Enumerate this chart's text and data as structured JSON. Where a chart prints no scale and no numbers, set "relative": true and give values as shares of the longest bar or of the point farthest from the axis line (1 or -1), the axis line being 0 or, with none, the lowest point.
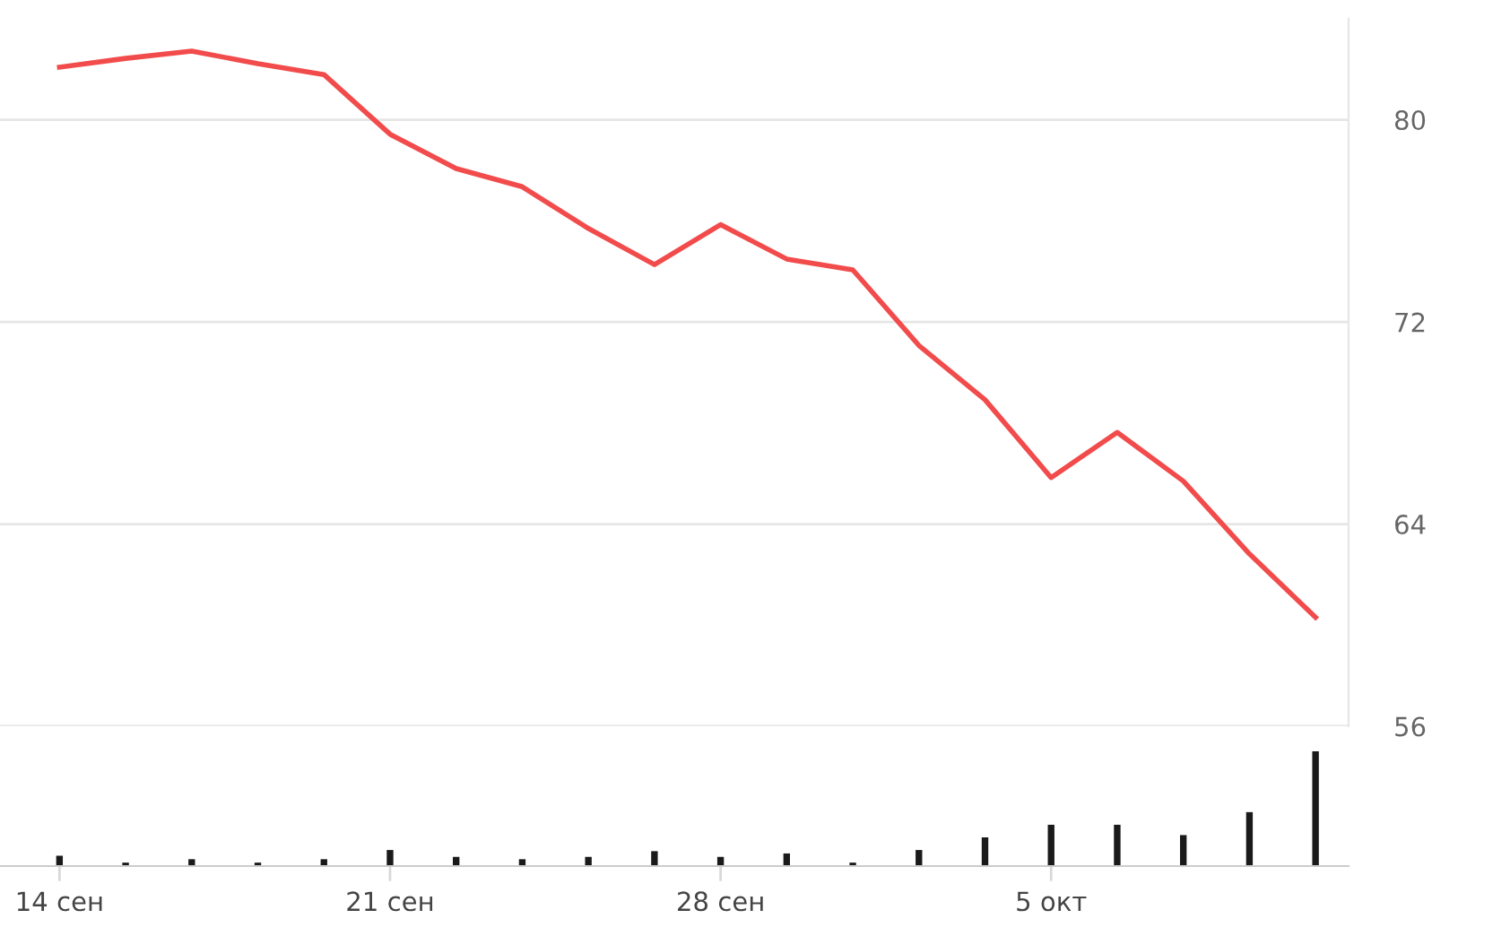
{
  "chart_data": [
    {
      "type": "line",
      "categories": [
        null,
        null,
        null,
        null,
        null,
        null,
        null,
        null,
        null,
        null,
        null,
        null,
        null,
        null,
        null,
        null,
        null,
        null,
        null,
        null
      ],
      "series": [
        {
          "color": "#f24b4b",
          "values": [
            82.08,
            82.43,
            82.72,
            82.22,
            81.79,
            79.43,
            78.07,
            77.35,
            75.7,
            74.27,
            75.85,
            74.49,
            74.06,
            71.07,
            68.92,
            65.84,
            67.63,
            65.7,
            62.82,
            60.31
          ]
        }
      ],
      "ylim": [
        56,
        84
      ],
      "yticks": [
        56,
        64,
        72,
        80
      ],
      "grid": "y",
      "tick_labels": "y",
      "marker": "none",
      "line_style": "solid"
    },
    {
      "type": "bar",
      "relative": true,
      "categories": [
        "14 сен",
        null,
        null,
        null,
        null,
        "21 сен",
        null,
        null,
        null,
        null,
        "28 сен",
        null,
        null,
        null,
        null,
        "5 окт",
        null,
        null,
        null,
        null
      ],
      "series": [
        {
          "color": "#1a1a1a",
          "values": [
            0.09,
            0.03,
            0.06,
            0.03,
            0.06,
            0.14,
            0.08,
            0.06,
            0.08,
            0.13,
            0.08,
            0.11,
            0.03,
            0.14,
            0.25,
            0.36,
            0.36,
            0.27,
            0.47,
            1.0
          ]
        }
      ],
      "tick_labels": "x"
    }
  ]
}
